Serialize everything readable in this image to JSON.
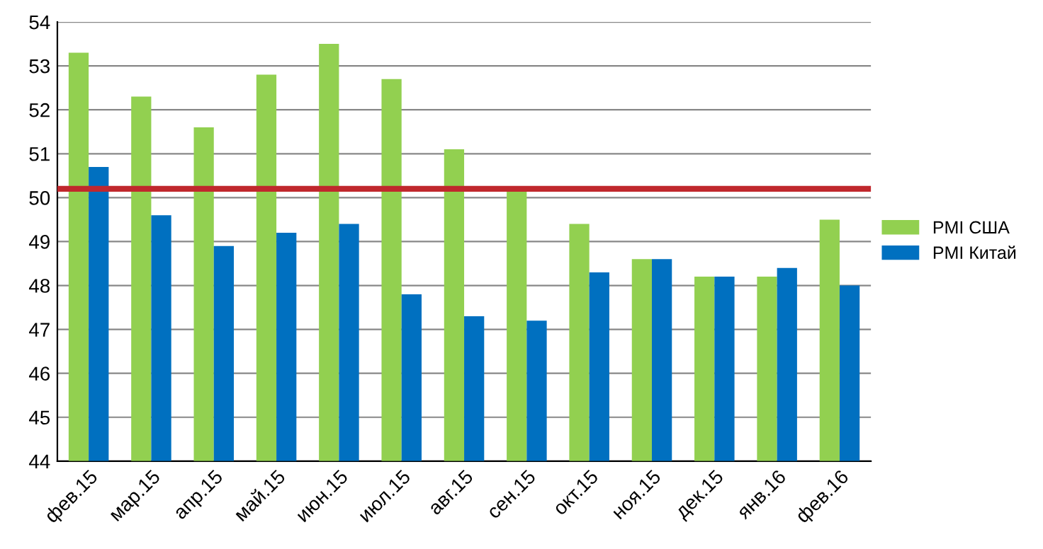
{
  "chart_data": {
    "type": "bar",
    "categories": [
      "фев.15",
      "мар.15",
      "апр.15",
      "май.15",
      "июн.15",
      "июл.15",
      "авг.15",
      "сен.15",
      "окт.15",
      "ноя.15",
      "дек.15",
      "янв.16",
      "фев.16"
    ],
    "series": [
      {
        "name": "PMI США",
        "color": "#92d050",
        "values": [
          53.3,
          52.3,
          51.6,
          52.8,
          53.5,
          52.7,
          51.1,
          50.2,
          49.4,
          48.6,
          48.2,
          48.2,
          49.5
        ]
      },
      {
        "name": "PMI Китай",
        "color": "#0070c0",
        "values": [
          50.7,
          49.6,
          48.9,
          49.2,
          49.4,
          47.8,
          47.3,
          47.2,
          48.3,
          48.6,
          48.2,
          48.4,
          48.0
        ]
      }
    ],
    "ylim": [
      44,
      54
    ],
    "yticks": [
      44,
      45,
      46,
      47,
      48,
      49,
      50,
      51,
      52,
      53,
      54
    ],
    "ref_lines": [
      {
        "axis": "y",
        "value": 50.2,
        "color": "#c0282d"
      }
    ],
    "grid": "y",
    "legend": "right"
  }
}
